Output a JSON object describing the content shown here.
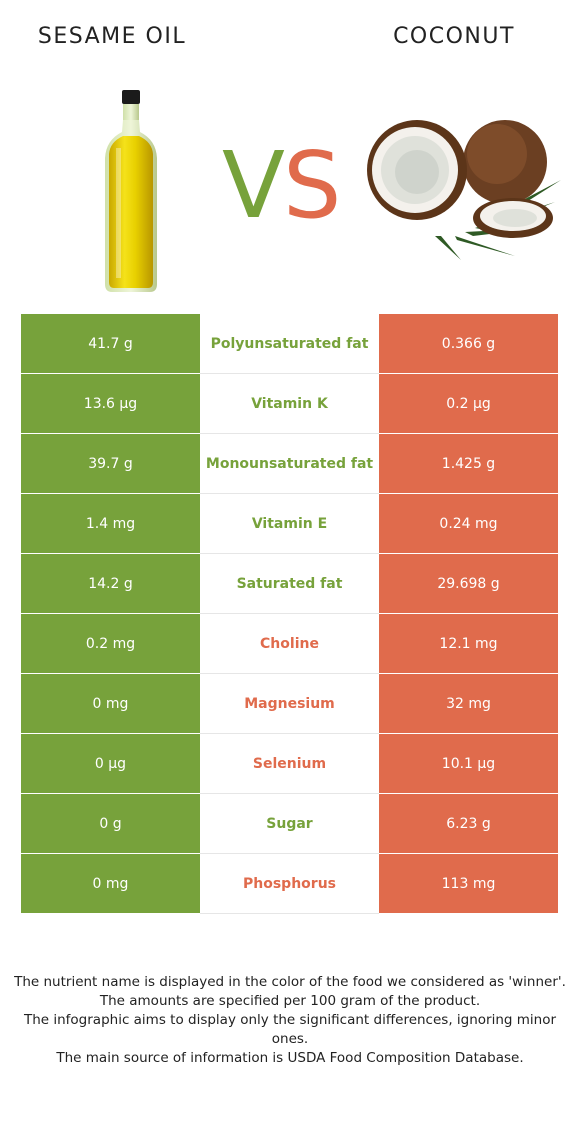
{
  "header": {
    "left_title": "SESAME OIL",
    "right_title": "COCONUT",
    "vs_v": "V",
    "vs_s": "S"
  },
  "colors": {
    "winner_left": "#77a23b",
    "winner_right": "#e06b4c"
  },
  "rows": [
    {
      "left": "41.7 g",
      "nutrient": "Polyunsaturated fat",
      "right": "0.366 g",
      "winner": "left"
    },
    {
      "left": "13.6 µg",
      "nutrient": "Vitamin K",
      "right": "0.2 µg",
      "winner": "left"
    },
    {
      "left": "39.7 g",
      "nutrient": "Monounsaturated fat",
      "right": "1.425 g",
      "winner": "left"
    },
    {
      "left": "1.4 mg",
      "nutrient": "Vitamin E",
      "right": "0.24 mg",
      "winner": "left"
    },
    {
      "left": "14.2 g",
      "nutrient": "Saturated fat",
      "right": "29.698 g",
      "winner": "left"
    },
    {
      "left": "0.2 mg",
      "nutrient": "Choline",
      "right": "12.1 mg",
      "winner": "right"
    },
    {
      "left": "0 mg",
      "nutrient": "Magnesium",
      "right": "32 mg",
      "winner": "right"
    },
    {
      "left": "0 µg",
      "nutrient": "Selenium",
      "right": "10.1 µg",
      "winner": "right"
    },
    {
      "left": "0 g",
      "nutrient": "Sugar",
      "right": "6.23 g",
      "winner": "left"
    },
    {
      "left": "0 mg",
      "nutrient": "Phosphorus",
      "right": "113 mg",
      "winner": "right"
    }
  ],
  "footer": {
    "line1": "The nutrient name is displayed in the color of the food we considered as 'winner'.",
    "line2": "The amounts are specified per 100 gram of the product.",
    "line3": "The infographic aims to display only the significant differences, ignoring minor ones.",
    "line4": "The main source of information is USDA Food Composition Database."
  }
}
